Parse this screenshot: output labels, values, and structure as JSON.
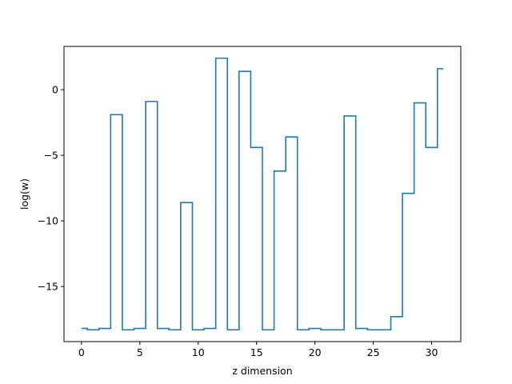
{
  "chart_data": {
    "type": "line",
    "style": "step",
    "title": "",
    "xlabel": "z dimension",
    "ylabel": "log(w)",
    "xlim": [
      -1.5,
      32.5
    ],
    "ylim": [
      -19.2,
      3.3
    ],
    "xticks": [
      0,
      5,
      10,
      15,
      20,
      25,
      30
    ],
    "yticks": [
      0,
      -5,
      -10,
      -15
    ],
    "ytick_labels": [
      "0",
      "−5",
      "−10",
      "−15"
    ],
    "grid": false,
    "legend": "none",
    "line_color": "#1f77b4",
    "x": [
      0,
      1,
      2,
      3,
      4,
      5,
      6,
      7,
      8,
      9,
      10,
      11,
      12,
      13,
      14,
      15,
      16,
      17,
      18,
      19,
      20,
      21,
      22,
      23,
      24,
      25,
      26,
      27,
      28,
      29,
      30,
      31
    ],
    "y": [
      -18.2,
      -18.3,
      -18.2,
      -1.9,
      -18.3,
      -18.2,
      -0.9,
      -18.2,
      -18.3,
      -8.6,
      -18.3,
      -18.2,
      2.4,
      -18.3,
      1.4,
      -4.4,
      -18.3,
      -6.2,
      -3.6,
      -18.3,
      -18.2,
      -18.3,
      -18.3,
      -2.0,
      -18.2,
      -18.3,
      -18.3,
      -17.3,
      -7.9,
      -1.0,
      -4.4,
      1.6
    ]
  }
}
